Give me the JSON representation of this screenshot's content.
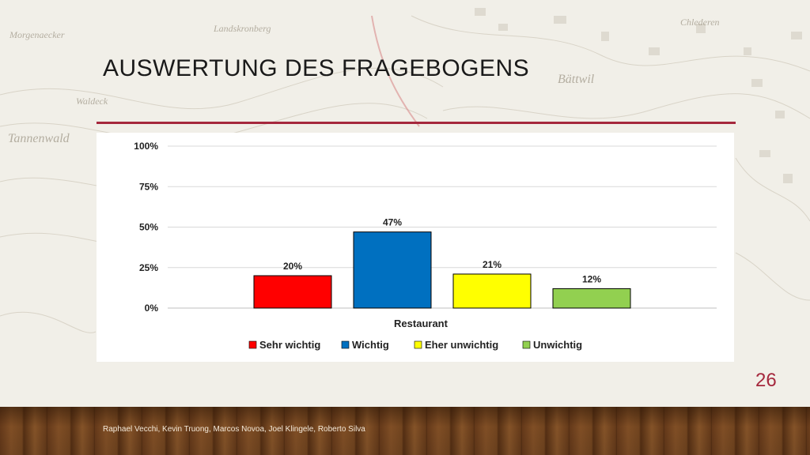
{
  "slide": {
    "title": "AUSWERTUNG DES FRAGEBOGENS",
    "page_number": "26",
    "footer": "Raphael Vecchi, Kevin Truong, Marcos Novoa, Joel Klingele, Roberto Silva",
    "accent_color": "#a5283d"
  },
  "map_labels": [
    {
      "text": "Morgenaecker",
      "name": "map-label-morgenaecker"
    },
    {
      "text": "Landskronberg",
      "name": "map-label-landskronberg"
    },
    {
      "text": "Bättwil",
      "name": "map-label-baettwil"
    },
    {
      "text": "Chlederen",
      "name": "map-label-chlederen"
    },
    {
      "text": "Waldeck",
      "name": "map-label-waldeck"
    },
    {
      "text": "Tannenwald",
      "name": "map-label-tannenwald"
    }
  ],
  "chart_data": {
    "type": "bar",
    "categories": [
      "Restaurant"
    ],
    "xlabel": "Restaurant",
    "ylabel": "",
    "ylim": [
      0,
      100
    ],
    "yticks": [
      "0%",
      "25%",
      "50%",
      "75%",
      "100%"
    ],
    "ytick_values": [
      0,
      25,
      50,
      75,
      100
    ],
    "grid": true,
    "legend_position": "bottom",
    "series": [
      {
        "name": "Sehr wichtig",
        "values": [
          20
        ],
        "label": "20%",
        "color": "#ff0000"
      },
      {
        "name": "Wichtig",
        "values": [
          47
        ],
        "label": "47%",
        "color": "#0070c0"
      },
      {
        "name": "Eher unwichtig",
        "values": [
          21
        ],
        "label": "21%",
        "color": "#ffff00"
      },
      {
        "name": "Unwichtig",
        "values": [
          12
        ],
        "label": "12%",
        "color": "#92d050"
      }
    ]
  }
}
